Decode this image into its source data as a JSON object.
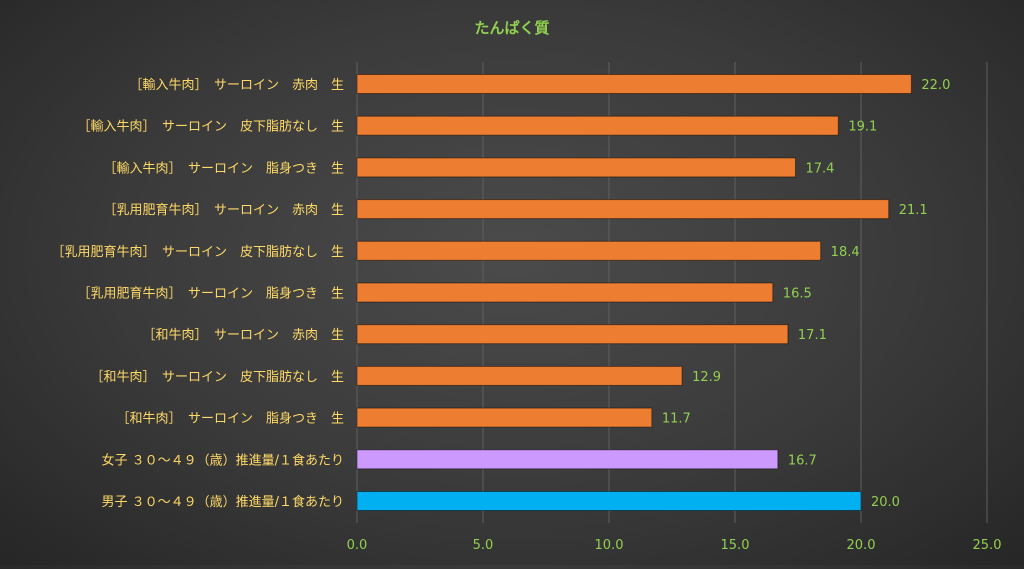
{
  "chart_data": {
    "type": "bar",
    "orientation": "horizontal",
    "title": "たんぱく質",
    "categories": [
      "［輸入牛肉］　サーロイン　赤肉　生",
      "［輸入牛肉］　サーロイン　皮下脂肪なし　生",
      "［輸入牛肉］　サーロイン　脂身つき　生",
      "［乳用肥育牛肉］　サーロイン　赤肉　生",
      "［乳用肥育牛肉］　サーロイン　皮下脂肪なし　生",
      "［乳用肥育牛肉］　サーロイン　脂身つき　生",
      "［和牛肉］　サーロイン　赤肉　生",
      "［和牛肉］　サーロイン　皮下脂肪なし　生",
      "［和牛肉］　サーロイン　脂身つき　生",
      "女子 ３０～４９（歳）推進量/１食あたり",
      "男子 ３０～４９（歳）推進量/１食あたり"
    ],
    "values": [
      22.0,
      19.1,
      17.4,
      21.1,
      18.4,
      16.5,
      17.1,
      12.9,
      11.7,
      16.7,
      20.0
    ],
    "value_labels": [
      "22.0",
      "19.1",
      "17.4",
      "21.1",
      "18.4",
      "16.5",
      "17.1",
      "12.9",
      "11.7",
      "16.7",
      "20.0"
    ],
    "bar_colors": [
      "#ed7d31",
      "#ed7d31",
      "#ed7d31",
      "#ed7d31",
      "#ed7d31",
      "#ed7d31",
      "#ed7d31",
      "#ed7d31",
      "#ed7d31",
      "#cc99ff",
      "#00b0f0"
    ],
    "xlim": [
      0,
      25
    ],
    "xticks": [
      0,
      5,
      10,
      15,
      20,
      25
    ],
    "xtick_labels": [
      "0.0",
      "5.0",
      "10.0",
      "15.0",
      "20.0",
      "25.0"
    ],
    "grid": "vertical",
    "colors": {
      "title": "#92d050",
      "category_label": "#ffd966",
      "value_label": "#92d050",
      "tick_label": "#92d050",
      "gridline": "#5f5f5f"
    }
  }
}
